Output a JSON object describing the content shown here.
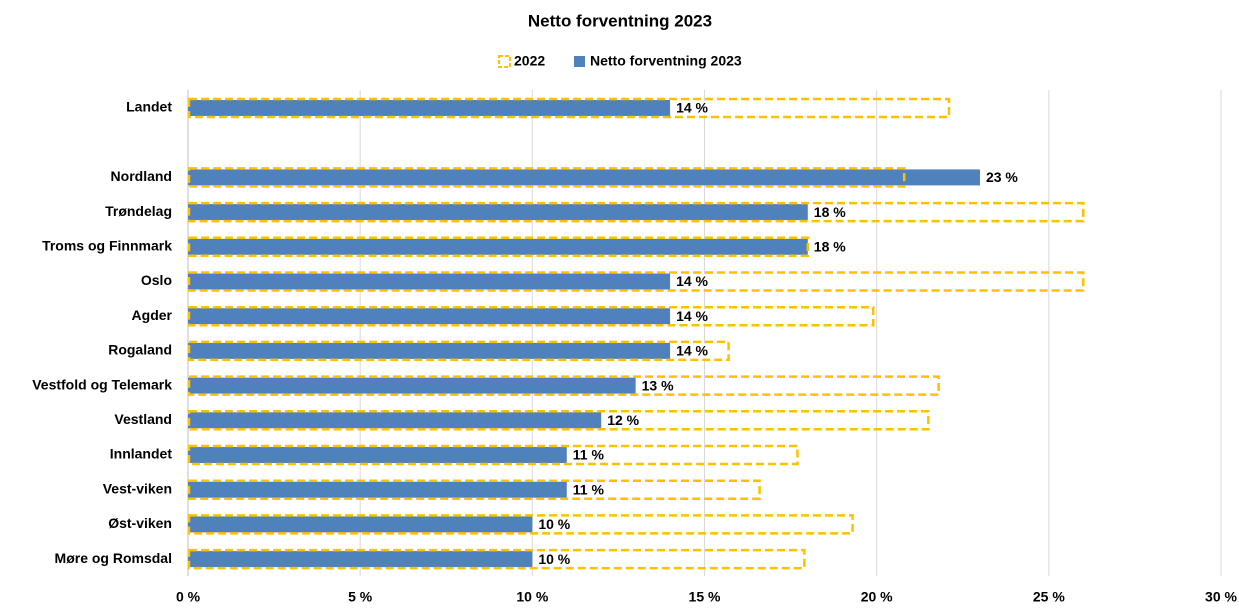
{
  "chart_data": {
    "type": "hbar",
    "title": "Netto forventning 2023",
    "categories": [
      "Landet",
      null,
      "Nordland",
      "Trøndelag",
      "Troms og Finnmark",
      "Oslo",
      "Agder",
      "Rogaland",
      "Vestfold og Telemark",
      "Vestland",
      "Innlandet",
      "Vest-viken",
      "Øst-viken",
      "Møre og Romsdal"
    ],
    "series": [
      {
        "name": "2022",
        "color": "#ffc000",
        "style": "dashed",
        "values": [
          22.1,
          null,
          20.8,
          26.0,
          18.0,
          26.0,
          19.9,
          15.7,
          21.8,
          21.5,
          17.7,
          16.6,
          19.3,
          17.9
        ]
      },
      {
        "name": "Netto forventning 2023",
        "color": "#4f81bd",
        "style": "solid",
        "values": [
          14,
          null,
          23,
          18,
          18,
          14,
          14,
          14,
          13,
          12,
          11,
          11,
          10,
          10
        ],
        "value_labels": [
          "14 %",
          null,
          "23 %",
          "18 %",
          "18 %",
          "14 %",
          "14 %",
          "14 %",
          "13 %",
          "12 %",
          "11 %",
          "11 %",
          "10 %",
          "10 %"
        ]
      }
    ],
    "xlim": [
      0,
      30
    ],
    "xticks": [
      {
        "value": 0,
        "label": "0 %"
      },
      {
        "value": 5,
        "label": "5 %"
      },
      {
        "value": 10,
        "label": "10 %"
      },
      {
        "value": 15,
        "label": "15 %"
      },
      {
        "value": 20,
        "label": "20 %"
      },
      {
        "value": 25,
        "label": "25 %"
      },
      {
        "value": 30,
        "label": "30 %"
      }
    ],
    "grid": true,
    "legend": "top"
  }
}
